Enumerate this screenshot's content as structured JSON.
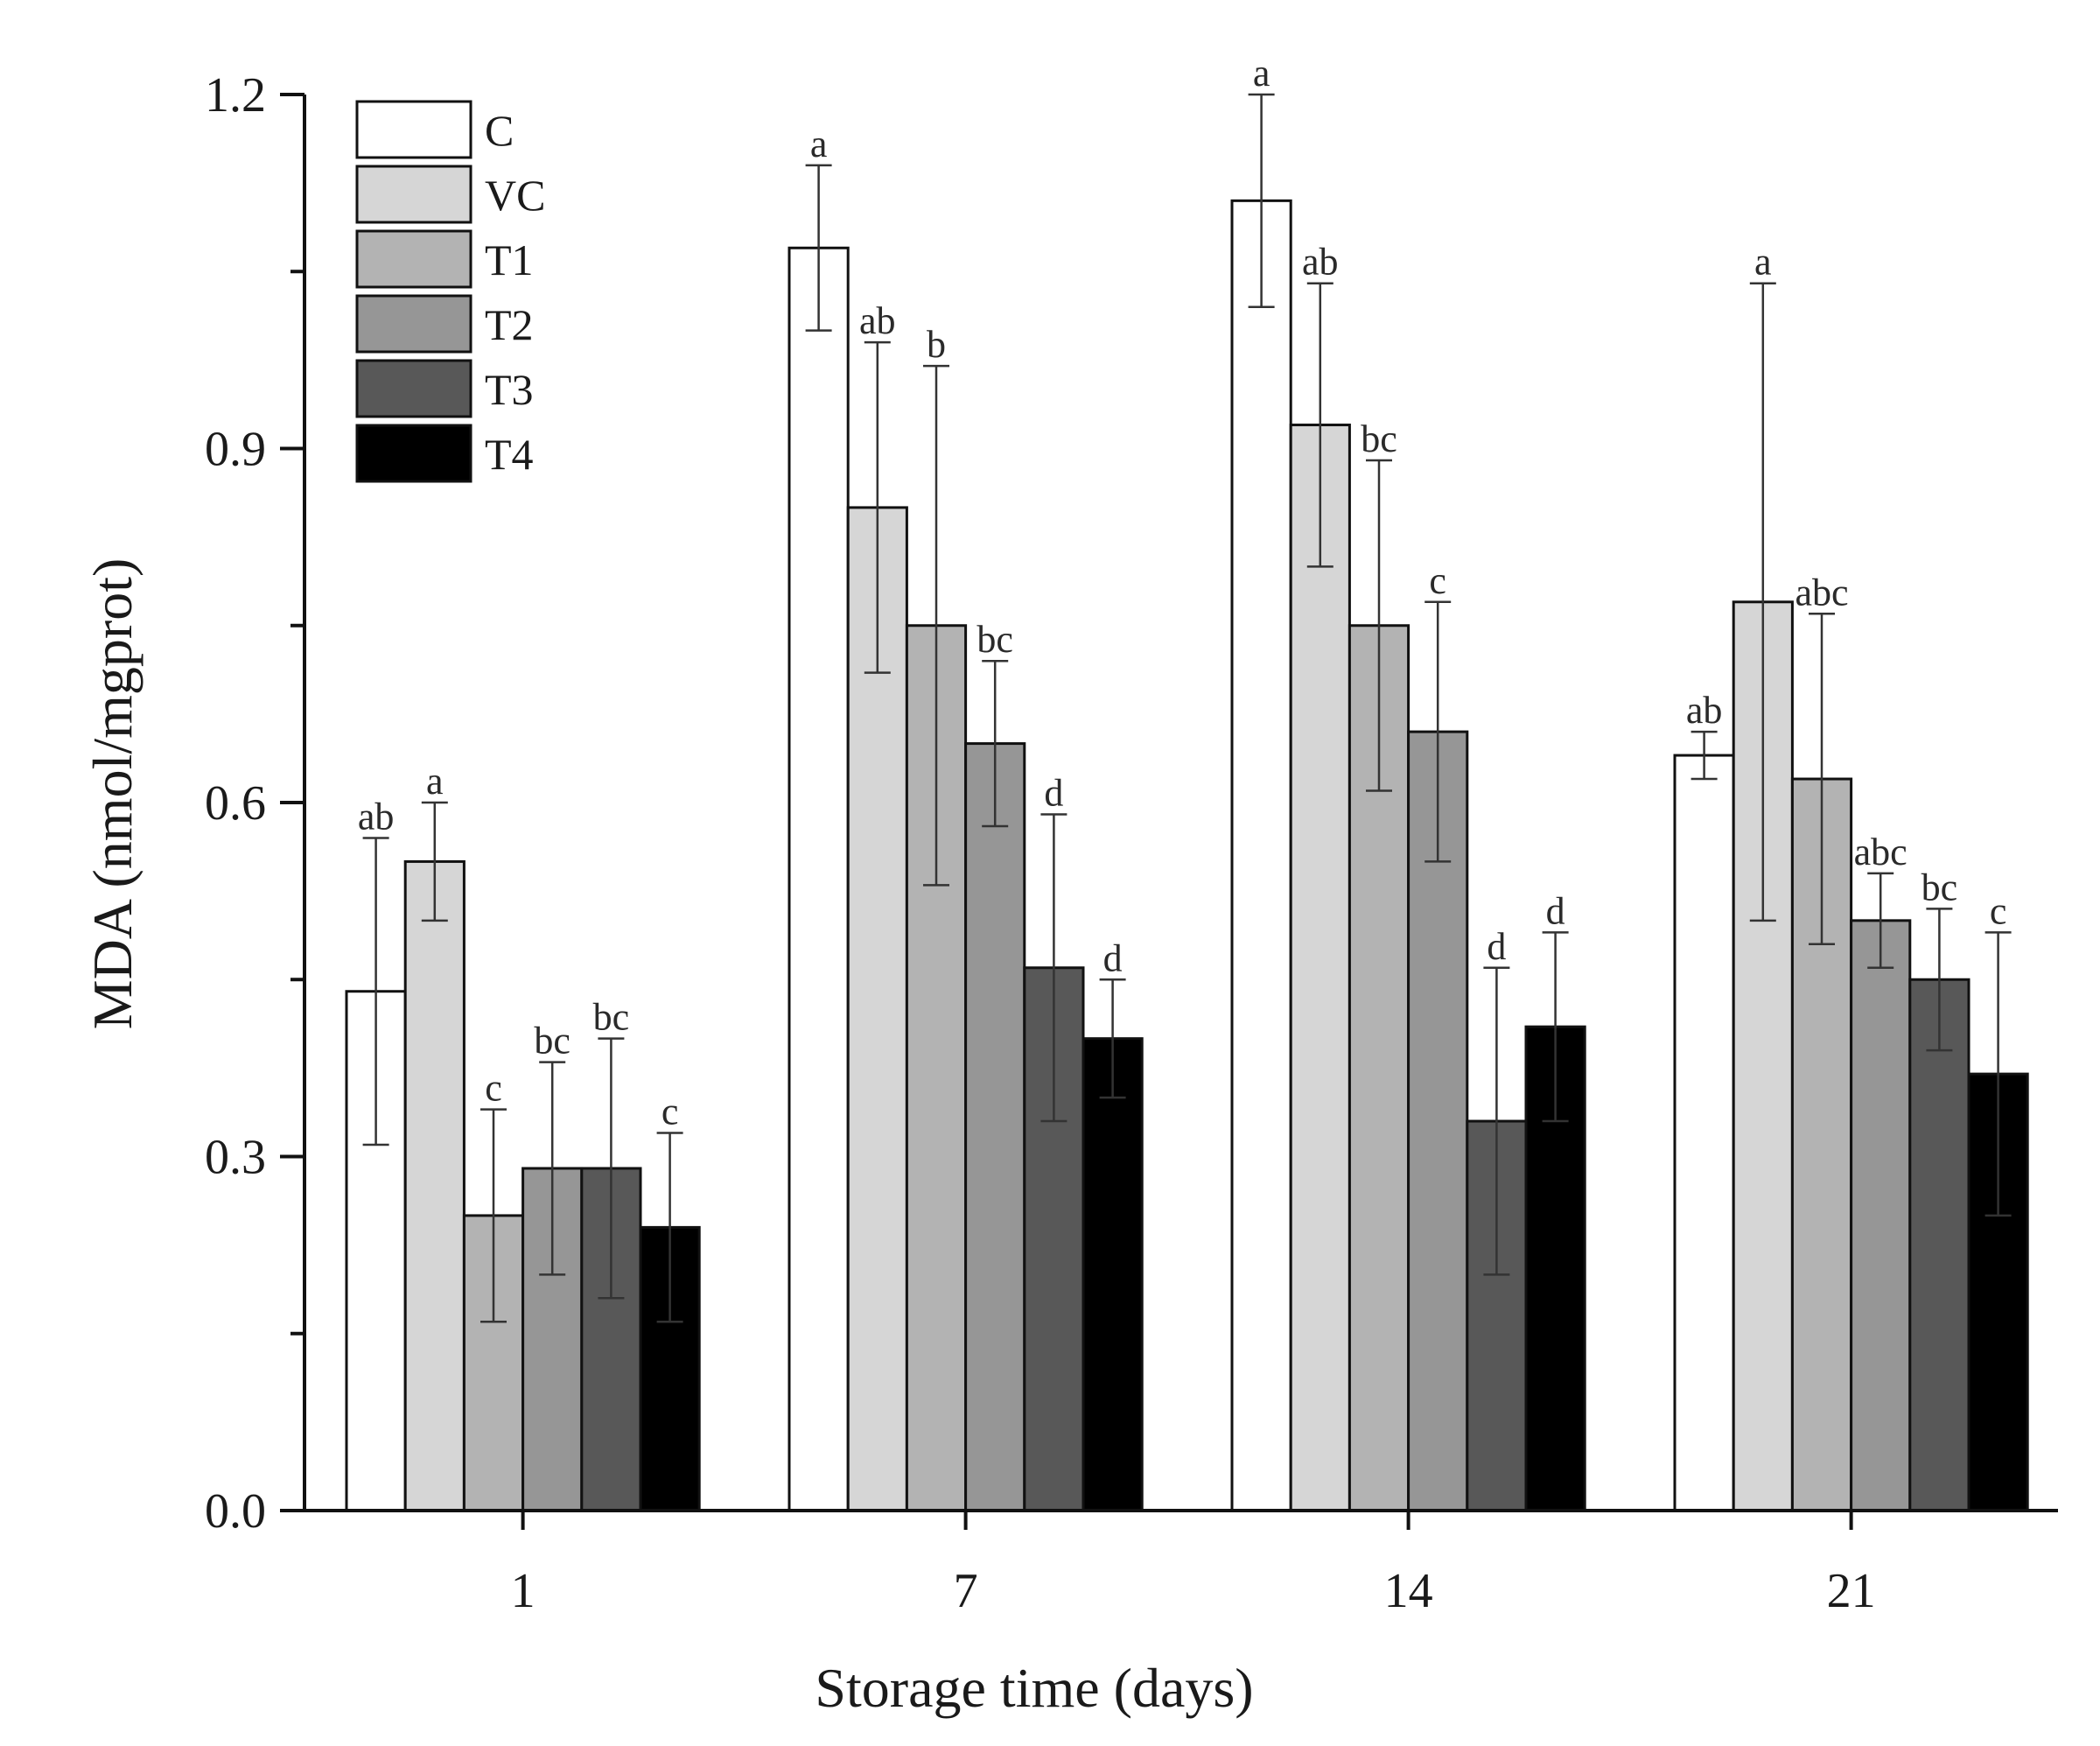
{
  "chart_data": {
    "type": "bar",
    "title": "",
    "xlabel": "Storage time (days)",
    "ylabel": "MDA (nmol/mgprot)",
    "ylim": [
      0,
      1.2
    ],
    "yticks": [
      "0.0",
      "0.3",
      "0.6",
      "0.9",
      "1.2"
    ],
    "categories": [
      "1",
      "7",
      "14",
      "21"
    ],
    "legend_position": "top-left",
    "series": [
      {
        "name": "C",
        "color": "#ffffff",
        "values": [
          0.44,
          1.07,
          1.11,
          0.64
        ],
        "errors": [
          0.13,
          0.07,
          0.09,
          0.02
        ],
        "labels": [
          "ab",
          "a",
          "a",
          "ab"
        ]
      },
      {
        "name": "VC",
        "color": "#d6d6d6",
        "values": [
          0.55,
          0.85,
          0.92,
          0.77
        ],
        "errors": [
          0.05,
          0.14,
          0.12,
          0.27
        ],
        "labels": [
          "a",
          "ab",
          "ab",
          "a"
        ]
      },
      {
        "name": "T1",
        "color": "#b3b3b3",
        "values": [
          0.25,
          0.75,
          0.75,
          0.62
        ],
        "errors": [
          0.09,
          0.22,
          0.14,
          0.14
        ],
        "labels": [
          "c",
          "b",
          "bc",
          "abc"
        ]
      },
      {
        "name": "T2",
        "color": "#969696",
        "values": [
          0.29,
          0.65,
          0.66,
          0.5
        ],
        "errors": [
          0.09,
          0.07,
          0.11,
          0.04
        ],
        "labels": [
          "bc",
          "bc",
          "c",
          "abc"
        ]
      },
      {
        "name": "T3",
        "color": "#585858",
        "values": [
          0.29,
          0.46,
          0.33,
          0.45
        ],
        "errors": [
          0.11,
          0.13,
          0.13,
          0.06
        ],
        "labels": [
          "bc",
          "d",
          "d",
          "bc"
        ]
      },
      {
        "name": "T4",
        "color": "#000000",
        "values": [
          0.24,
          0.4,
          0.41,
          0.37
        ],
        "errors": [
          0.08,
          0.05,
          0.08,
          0.12
        ],
        "labels": [
          "c",
          "d",
          "d",
          "c"
        ]
      }
    ]
  }
}
